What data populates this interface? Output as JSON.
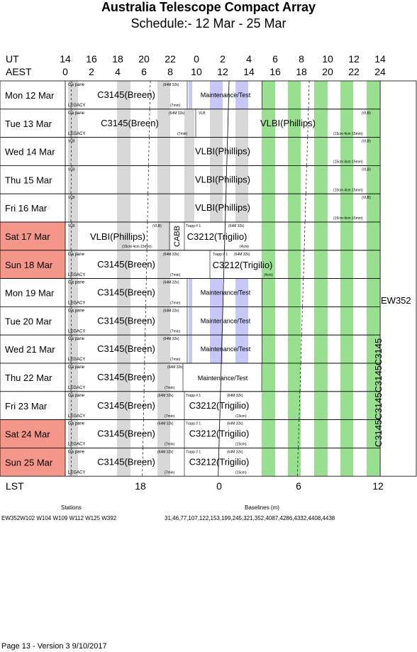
{
  "title": "Australia Telescope Compact Array",
  "subtitle": "Schedule:- 12 Mar - 25 Mar",
  "ut_label": "UT",
  "aest_label": "AEST",
  "ut_ticks": [
    "14",
    "16",
    "18",
    "20",
    "22",
    "0",
    "2",
    "4",
    "6",
    "8",
    "10",
    "12",
    "14"
  ],
  "aest_ticks": [
    "0",
    "2",
    "4",
    "6",
    "8",
    "10",
    "12",
    "14",
    "16",
    "18",
    "20",
    "22",
    "24"
  ],
  "lst_label": "LST",
  "lst_ticks": [
    "18",
    "0",
    "6",
    "12"
  ],
  "side_label": "EW352",
  "vertical_label": "C3145C3145C3145C3145",
  "colors": {
    "weekend": "#f4968a",
    "gray": "#d8d8d8",
    "green": "#98e090",
    "blue": "#c8c8f8"
  },
  "rows": [
    {
      "day": "Mon",
      "date": "12 Mar",
      "weekend": false,
      "type": "A"
    },
    {
      "day": "Tue",
      "date": "13 Mar",
      "weekend": false,
      "type": "B"
    },
    {
      "day": "Wed",
      "date": "14 Mar",
      "weekend": false,
      "type": "C"
    },
    {
      "day": "Thu",
      "date": "15 Mar",
      "weekend": false,
      "type": "C"
    },
    {
      "day": "Fri",
      "date": "16 Mar",
      "weekend": false,
      "type": "C"
    },
    {
      "day": "Sat",
      "date": "17 Mar",
      "weekend": true,
      "type": "D"
    },
    {
      "day": "Sun",
      "date": "18 Mar",
      "weekend": true,
      "type": "E"
    },
    {
      "day": "Mon",
      "date": "19 Mar",
      "weekend": false,
      "type": "A"
    },
    {
      "day": "Tue",
      "date": "20 Mar",
      "weekend": false,
      "type": "A"
    },
    {
      "day": "Wed",
      "date": "21 Mar",
      "weekend": false,
      "type": "A"
    },
    {
      "day": "Thu",
      "date": "22 Mar",
      "weekend": false,
      "type": "F"
    },
    {
      "day": "Fri",
      "date": "23 Mar",
      "weekend": false,
      "type": "G"
    },
    {
      "day": "Sat",
      "date": "24 Mar",
      "weekend": true,
      "type": "G"
    },
    {
      "day": "Sun",
      "date": "25 Mar",
      "weekend": true,
      "type": "G"
    }
  ],
  "labels": {
    "ga_pane": "Ga pane",
    "legacy": "LEGACY",
    "c3145": "C3145(Breen)",
    "maint": "Maintenance/Test",
    "vlbi": "VLBI(Phillips)",
    "vlb": "VLB",
    "vlb_paren": "(VLB)",
    "c3212": "C3212(Trigilio)",
    "trapp": "Trapp # 1",
    "m64": "(64M 32k)",
    "m7": "(7min)",
    "m4": "(4cm)",
    "m15": "(15cm)",
    "vlbi_note": "(15cm 4cm 15mm)",
    "cabb": "CABB"
  },
  "footer": {
    "stations_label": "Stations",
    "stations": "EW352W102 W104 W109 W112 W125 W392",
    "baselines_label": "Baselines (m)",
    "baselines": "31,46,77,107,122,153,199,245,321,352,4087,4286,4332,4408,4438",
    "page": "Page 13 - Version 3  9/10/2017"
  }
}
